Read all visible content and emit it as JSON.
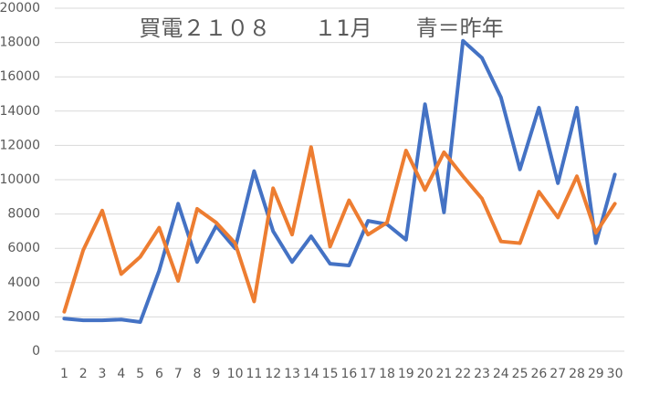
{
  "chart_data": {
    "type": "line",
    "title": "買電２１０８　　１1月　　青＝昨年",
    "categories": [
      "1",
      "2",
      "3",
      "4",
      "5",
      "6",
      "7",
      "8",
      "9",
      "10",
      "11",
      "12",
      "13",
      "14",
      "15",
      "16",
      "17",
      "18",
      "19",
      "20",
      "21",
      "22",
      "23",
      "24",
      "25",
      "26",
      "27",
      "28",
      "29",
      "30"
    ],
    "series": [
      {
        "color": "#4472c4",
        "values": [
          1900,
          1800,
          1800,
          1850,
          1700,
          4700,
          8600,
          5200,
          7300,
          6000,
          10500,
          7000,
          5200,
          6700,
          5100,
          5000,
          7600,
          7400,
          6500,
          14400,
          8100,
          18100,
          17100,
          14800,
          10600,
          14200,
          9800,
          14200,
          6300,
          10300
        ]
      },
      {
        "color": "#ed7d31",
        "values": [
          2300,
          5900,
          8200,
          4500,
          5500,
          7200,
          4100,
          8300,
          7500,
          6300,
          2900,
          9500,
          6800,
          11900,
          6100,
          8800,
          6800,
          7500,
          11700,
          9400,
          11600,
          10200,
          8900,
          6400,
          6300,
          9300,
          7800,
          10200,
          6900,
          8600
        ]
      }
    ],
    "ylim": [
      0,
      20000
    ],
    "yticks": [
      0,
      2000,
      4000,
      6000,
      8000,
      10000,
      12000,
      14000,
      16000,
      18000,
      20000
    ],
    "grid": true
  }
}
